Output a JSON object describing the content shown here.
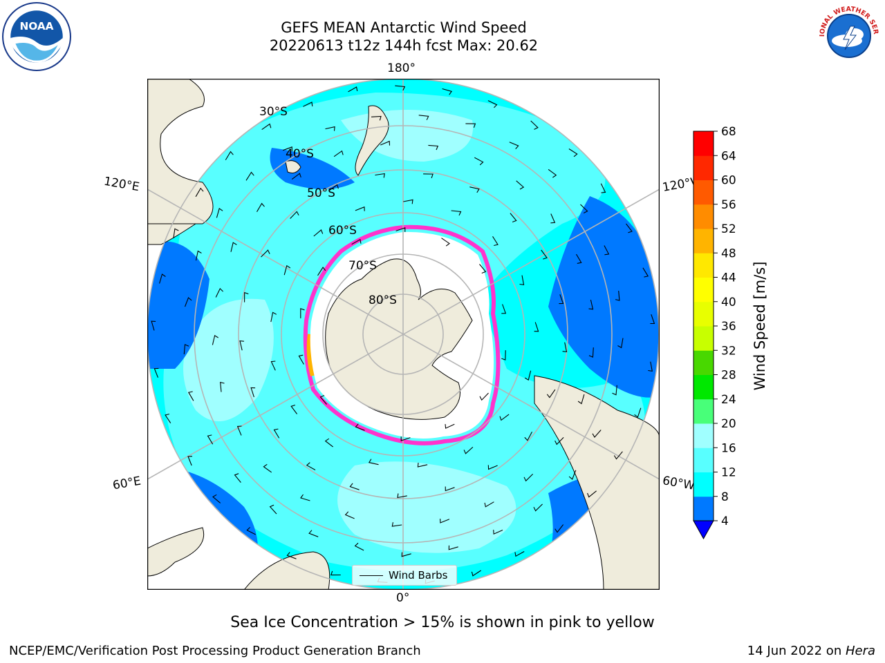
{
  "title_line1": "GEFS MEAN Antarctic Wind Speed",
  "title_line2": "20220613 t12z 144h fcst   Max: 20.62",
  "lon_labels": {
    "top": "180°",
    "left_upper": "120°E",
    "right_upper": "120°W",
    "left_lower": "60°E",
    "right_lower": "60°W",
    "bottom": "0°"
  },
  "lat_labels": [
    "30°S",
    "40°S",
    "50°S",
    "60°S",
    "70°S",
    "80°S"
  ],
  "legend": {
    "label": "Wind Barbs"
  },
  "colorbar": {
    "label": "Wind Speed [m/s]",
    "ticks": [
      "4",
      "8",
      "12",
      "16",
      "20",
      "24",
      "28",
      "32",
      "36",
      "40",
      "44",
      "48",
      "52",
      "56",
      "60",
      "64",
      "68"
    ],
    "colors": [
      "#0079ff",
      "#00ffff",
      "#58ffff",
      "#a0ffff",
      "#48ff79",
      "#00e800",
      "#48d800",
      "#c8ff00",
      "#e8ff00",
      "#ffff00",
      "#ffe800",
      "#ffb400",
      "#ff8c00",
      "#ff5a00",
      "#ff2800",
      "#ff0000"
    ],
    "under_color": "#0000ff"
  },
  "map_colors": {
    "land": "#efecdc",
    "ice_shelf": "#ffffff",
    "ocean_low": "#0079ff",
    "ocean_mid": "#00ffff",
    "ocean_high": "#58ffff",
    "sea_ice_edge": "#ff33cc",
    "sea_ice_inner": "#ffb400"
  },
  "logos": {
    "left": "NOAA",
    "right": "NATIONAL WEATHER SERVICE"
  },
  "note": "Sea Ice Concentration > 15% is shown in pink to yellow",
  "credit": "NCEP/EMC/Verification Post Processing Product Generation Branch",
  "stamp_date": "14 Jun 2022 on ",
  "stamp_host": "Hera"
}
